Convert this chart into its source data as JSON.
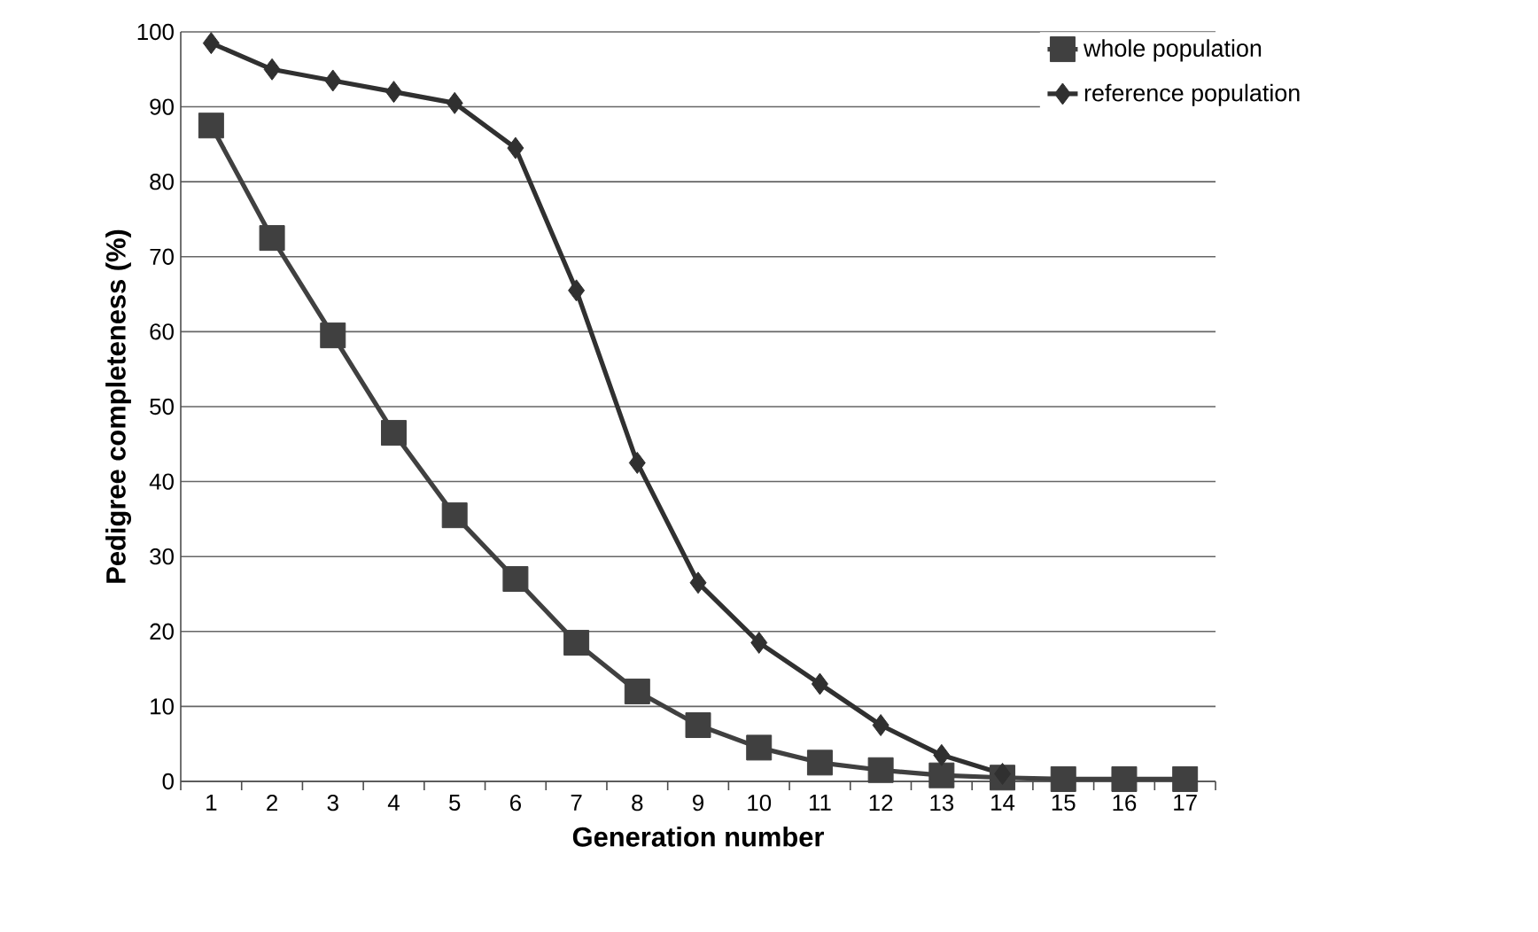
{
  "chart_data": {
    "type": "line",
    "xlabel": "Generation number",
    "ylabel": "Pedigree completeness (%)",
    "categories": [
      "1",
      "2",
      "3",
      "4",
      "5",
      "6",
      "7",
      "8",
      "9",
      "10",
      "11",
      "12",
      "13",
      "14",
      "15",
      "16",
      "17"
    ],
    "series": [
      {
        "name": "whole population",
        "color": "#404040",
        "marker": "square",
        "values": [
          87.5,
          72.5,
          59.5,
          46.5,
          35.5,
          27,
          18.5,
          12,
          7.5,
          4.5,
          2.5,
          1.5,
          0.8,
          0.5,
          0.3,
          0.3,
          0.3
        ]
      },
      {
        "name": "reference population",
        "color": "#303030",
        "marker": "diamond",
        "values": [
          98.5,
          95,
          93.5,
          92,
          90.5,
          84.5,
          65.5,
          42.5,
          26.5,
          18.5,
          13,
          7.5,
          3.5,
          1,
          null,
          null,
          null
        ]
      }
    ],
    "ylim": [
      0,
      100
    ],
    "yticks": [
      0,
      10,
      20,
      30,
      40,
      50,
      60,
      70,
      80,
      90,
      100
    ],
    "grid": "y",
    "legend": "top right",
    "line_style": "solid"
  }
}
